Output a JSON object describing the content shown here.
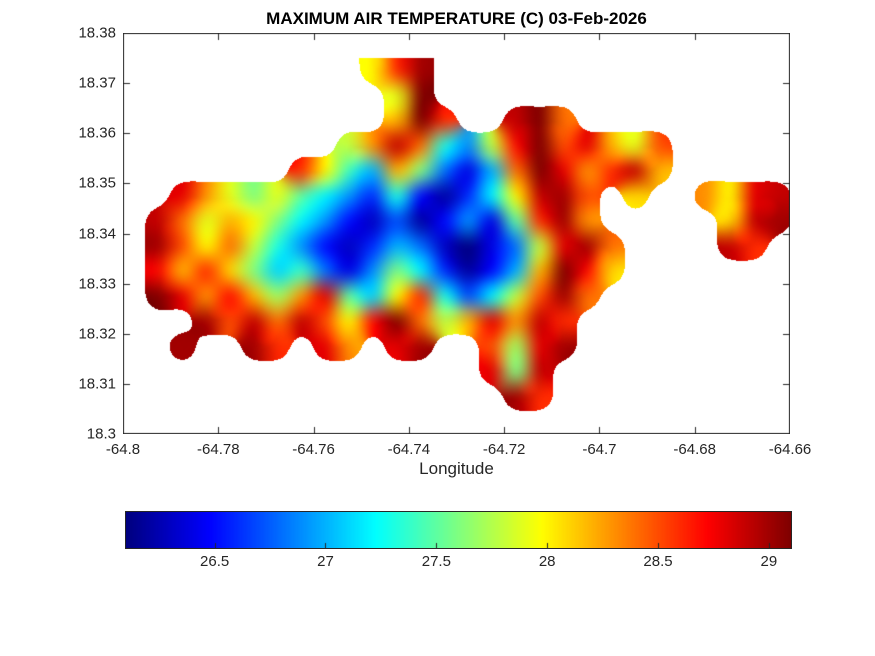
{
  "chart_data": {
    "type": "heatmap",
    "title": "MAXIMUM AIR TEMPERATURE (C) 03-Feb-2026",
    "xlabel": "Longitude",
    "ylabel": "",
    "xlim": [
      -64.8,
      -64.66
    ],
    "ylim": [
      18.3,
      18.38
    ],
    "x_ticks": [
      -64.8,
      -64.78,
      -64.76,
      -64.74,
      -64.72,
      -64.7,
      -64.68,
      -64.66
    ],
    "x_tick_labels": [
      "-64.8",
      "-64.78",
      "-64.76",
      "-64.74",
      "-64.72",
      "-64.7",
      "-64.68",
      "-64.66"
    ],
    "y_ticks": [
      18.38,
      18.37,
      18.36,
      18.35,
      18.34,
      18.33,
      18.32,
      18.31,
      18.3
    ],
    "y_tick_labels": [
      "18.38",
      "18.37",
      "18.36",
      "18.35",
      "18.34",
      "18.33",
      "18.32",
      "18.31",
      "18.3"
    ],
    "colormap": "jet",
    "clim": [
      26.1,
      29.1
    ],
    "grid_on": false,
    "colorbar": {
      "orientation": "horizontal",
      "ticks": [
        26.5,
        27,
        27.5,
        28,
        28.5,
        29
      ],
      "tick_labels": [
        "26.5",
        "27",
        "27.5",
        "28",
        "28.5",
        "29"
      ]
    },
    "grid": {
      "lon_left": -64.8,
      "lon_step": 0.005,
      "lat_top": 18.375,
      "lat_step": 0.005,
      "values": [
        [
          null,
          null,
          null,
          null,
          null,
          null,
          null,
          null,
          null,
          null,
          28.0,
          28.6,
          29.0,
          null,
          null,
          null,
          null,
          null,
          null,
          null,
          null,
          null,
          null,
          null,
          null,
          null,
          null,
          null,
          null,
          null
        ],
        [
          null,
          null,
          null,
          null,
          null,
          null,
          null,
          null,
          null,
          null,
          null,
          27.9,
          29.1,
          null,
          null,
          null,
          null,
          null,
          null,
          null,
          null,
          null,
          null,
          null,
          null,
          null,
          null,
          null,
          null,
          null
        ],
        [
          null,
          null,
          null,
          null,
          null,
          null,
          null,
          null,
          null,
          null,
          null,
          28.2,
          29.2,
          28.6,
          null,
          null,
          28.9,
          29.1,
          28.4,
          null,
          null,
          null,
          null,
          null,
          null,
          null,
          null,
          null,
          null,
          null
        ],
        [
          null,
          null,
          null,
          null,
          null,
          null,
          null,
          null,
          null,
          27.8,
          28.3,
          28.9,
          28.4,
          27.3,
          26.9,
          27.8,
          28.7,
          29.1,
          28.5,
          28.8,
          28.2,
          27.9,
          28.5,
          null,
          null,
          null,
          null,
          null,
          null,
          null
        ],
        [
          null,
          null,
          null,
          null,
          null,
          null,
          null,
          28.6,
          28.0,
          27.4,
          27.0,
          28.2,
          27.6,
          26.8,
          26.4,
          27.0,
          28.4,
          29.1,
          28.8,
          28.3,
          28.6,
          28.9,
          28.2,
          null,
          null,
          null,
          null,
          null,
          null,
          null
        ],
        [
          null,
          null,
          28.8,
          28.3,
          27.9,
          27.6,
          27.9,
          27.5,
          27.2,
          26.9,
          26.6,
          27.3,
          26.5,
          26.2,
          26.6,
          27.2,
          28.0,
          28.9,
          29.0,
          28.5,
          null,
          28.1,
          null,
          null,
          28.3,
          28.0,
          28.8,
          28.9,
          null,
          null
        ],
        [
          null,
          28.9,
          28.4,
          27.9,
          28.2,
          28.0,
          27.6,
          27.2,
          26.9,
          26.5,
          26.3,
          26.7,
          26.2,
          26.5,
          26.9,
          26.4,
          27.5,
          28.6,
          29.0,
          28.3,
          null,
          null,
          null,
          null,
          null,
          28.1,
          28.9,
          29.0,
          null,
          null
        ],
        [
          null,
          29.0,
          28.5,
          28.0,
          28.4,
          27.8,
          27.3,
          26.9,
          26.5,
          26.3,
          26.6,
          27.0,
          26.8,
          26.3,
          26.1,
          26.4,
          26.8,
          27.8,
          28.8,
          29.0,
          28.4,
          null,
          null,
          null,
          null,
          28.9,
          28.6,
          null,
          null,
          null
        ],
        [
          null,
          28.7,
          28.2,
          28.6,
          28.1,
          27.6,
          27.1,
          27.4,
          26.8,
          26.4,
          26.9,
          27.6,
          27.2,
          26.6,
          26.2,
          26.5,
          27.0,
          28.2,
          29.1,
          28.7,
          28.1,
          null,
          null,
          null,
          null,
          null,
          null,
          null,
          null,
          null
        ],
        [
          null,
          29.1,
          28.8,
          28.3,
          28.7,
          28.2,
          27.7,
          28.3,
          28.8,
          27.5,
          27.1,
          28.0,
          28.6,
          27.3,
          26.7,
          27.2,
          27.8,
          28.5,
          29.0,
          28.4,
          null,
          null,
          null,
          null,
          null,
          null,
          null,
          null,
          null,
          null
        ],
        [
          null,
          null,
          null,
          29.0,
          28.5,
          28.9,
          28.4,
          28.9,
          28.5,
          28.0,
          28.7,
          29.1,
          28.4,
          27.8,
          28.2,
          28.8,
          28.3,
          28.9,
          28.6,
          null,
          null,
          null,
          null,
          null,
          null,
          null,
          null,
          null,
          null,
          null
        ],
        [
          null,
          null,
          29.0,
          null,
          null,
          29.0,
          28.6,
          null,
          28.8,
          28.3,
          null,
          28.8,
          29.0,
          null,
          null,
          28.5,
          27.7,
          28.8,
          29.0,
          null,
          null,
          null,
          null,
          null,
          null,
          null,
          null,
          null,
          null,
          null
        ],
        [
          null,
          null,
          null,
          null,
          null,
          null,
          null,
          null,
          null,
          null,
          null,
          null,
          null,
          null,
          null,
          28.8,
          27.6,
          28.9,
          null,
          null,
          null,
          null,
          null,
          null,
          null,
          null,
          null,
          null,
          null,
          null
        ],
        [
          null,
          null,
          null,
          null,
          null,
          null,
          null,
          null,
          null,
          null,
          null,
          null,
          null,
          null,
          null,
          null,
          29.0,
          28.6,
          null,
          null,
          null,
          null,
          null,
          null,
          null,
          null,
          null,
          null,
          null,
          null
        ],
        [
          null,
          null,
          null,
          null,
          null,
          null,
          null,
          null,
          null,
          null,
          null,
          null,
          null,
          null,
          null,
          null,
          null,
          null,
          null,
          null,
          null,
          null,
          null,
          null,
          null,
          null,
          null,
          null,
          null,
          null
        ],
        [
          null,
          null,
          null,
          null,
          null,
          null,
          null,
          null,
          null,
          null,
          null,
          null,
          null,
          null,
          null,
          null,
          null,
          null,
          null,
          null,
          null,
          null,
          null,
          null,
          null,
          null,
          null,
          null,
          null,
          null
        ]
      ]
    }
  }
}
